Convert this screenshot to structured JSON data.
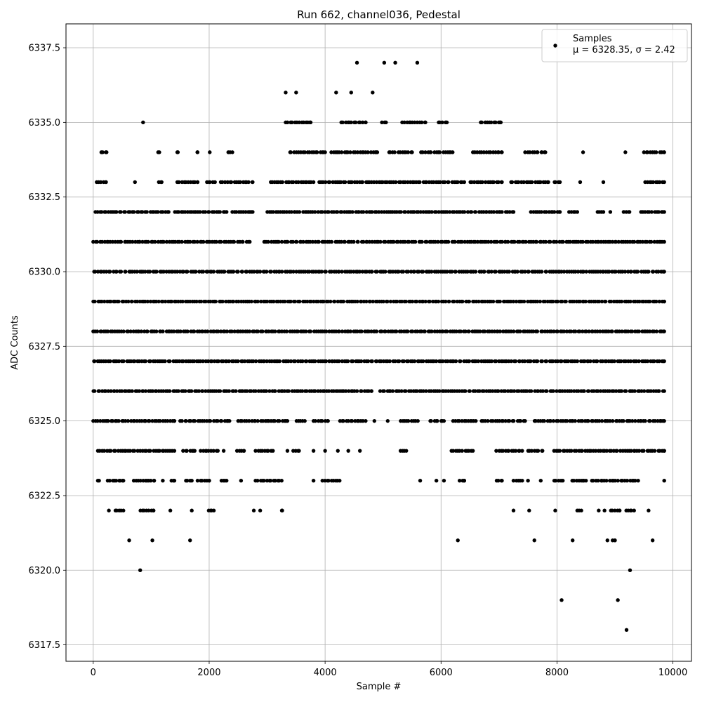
{
  "chart_data": {
    "type": "scatter",
    "title": "Run 662, channel036, Pedestal",
    "xlabel": "Sample #",
    "ylabel": "ADC Counts",
    "xlim": [
      -470,
      10320
    ],
    "ylim": [
      6316.95,
      6338.3
    ],
    "xticks": [
      0,
      2000,
      4000,
      6000,
      8000,
      10000
    ],
    "xtick_labels": [
      "0",
      "2000",
      "4000",
      "6000",
      "8000",
      "10000"
    ],
    "yticks": [
      6317.5,
      6320.0,
      6322.5,
      6325.0,
      6327.5,
      6330.0,
      6332.5,
      6335.0,
      6337.5
    ],
    "ytick_labels": [
      "6317.5",
      "6320.0",
      "6322.5",
      "6325.0",
      "6327.5",
      "6330.0",
      "6332.5",
      "6335.0",
      "6337.5"
    ],
    "grid": true,
    "legend_position": "top-right",
    "marker_color": "#000000",
    "series": [
      {
        "name": "Samples",
        "stats_label": "μ = 6328.35, σ = 2.42",
        "n_samples": 9850,
        "x_range": [
          0,
          9850
        ],
        "level_bands": [
          {
            "y": 6337,
            "segments": [
              [
                4550,
                4550
              ],
              [
                5020,
                5020
              ],
              [
                5210,
                5210
              ],
              [
                5590,
                5590
              ]
            ]
          },
          {
            "y": 6336,
            "segments": [
              [
                3320,
                3320
              ],
              [
                3500,
                3500
              ],
              [
                4190,
                4190
              ],
              [
                4450,
                4450
              ],
              [
                4820,
                4820
              ]
            ]
          },
          {
            "y": 6335,
            "segments": [
              [
                860,
                860
              ],
              [
                3320,
                3750
              ],
              [
                4270,
                4700
              ],
              [
                4980,
                5050
              ],
              [
                5330,
                5730
              ],
              [
                5950,
                6100
              ],
              [
                6680,
                7030
              ]
            ]
          },
          {
            "y": 6334,
            "segments": [
              [
                140,
                230
              ],
              [
                1120,
                1140
              ],
              [
                1450,
                1460
              ],
              [
                1790,
                1800
              ],
              [
                2010,
                2010
              ],
              [
                2330,
                2400
              ],
              [
                3380,
                4000
              ],
              [
                4100,
                4900
              ],
              [
                5100,
                5500
              ],
              [
                5650,
                6200
              ],
              [
                6550,
                7050
              ],
              [
                7450,
                7800
              ],
              [
                8450,
                8450
              ],
              [
                9180,
                9180
              ],
              [
                9500,
                9850
              ]
            ]
          },
          {
            "y": 6333,
            "segments": [
              [
                60,
                220
              ],
              [
                720,
                720
              ],
              [
                1130,
                1180
              ],
              [
                1450,
                1800
              ],
              [
                1950,
                2100
              ],
              [
                2200,
                2750
              ],
              [
                3050,
                3450
              ],
              [
                3500,
                3800
              ],
              [
                3900,
                6400
              ],
              [
                6500,
                7050
              ],
              [
                7200,
                7850
              ],
              [
                7950,
                8050
              ],
              [
                8400,
                8400
              ],
              [
                8800,
                8800
              ],
              [
                9520,
                9850
              ]
            ]
          },
          {
            "y": 6332,
            "segments": [
              [
                30,
                700
              ],
              [
                750,
                1300
              ],
              [
                1400,
                2300
              ],
              [
                2400,
                2750
              ],
              [
                3000,
                7250
              ],
              [
                7550,
                8050
              ],
              [
                8200,
                8350
              ],
              [
                8700,
                8800
              ],
              [
                8920,
                8920
              ],
              [
                9150,
                9250
              ],
              [
                9450,
                9850
              ]
            ]
          },
          {
            "y": 6331,
            "segments": [
              [
                0,
                800
              ],
              [
                850,
                1900
              ],
              [
                1950,
                2700
              ],
              [
                2950,
                9850
              ]
            ]
          },
          {
            "y": 6330,
            "segments": [
              [
                0,
                8900
              ],
              [
                8950,
                9850
              ]
            ]
          },
          {
            "y": 6329,
            "segments": [
              [
                0,
                9850
              ]
            ]
          },
          {
            "y": 6328,
            "segments": [
              [
                0,
                9850
              ]
            ]
          },
          {
            "y": 6327,
            "segments": [
              [
                0,
                9850
              ]
            ]
          },
          {
            "y": 6326,
            "segments": [
              [
                0,
                4550
              ],
              [
                4600,
                4800
              ],
              [
                4950,
                9850
              ]
            ]
          },
          {
            "y": 6325,
            "segments": [
              [
                0,
                900
              ],
              [
                900,
                1400
              ],
              [
                1500,
                2350
              ],
              [
                2500,
                3350
              ],
              [
                3500,
                3650
              ],
              [
                3800,
                4050
              ],
              [
                4250,
                4700
              ],
              [
                4850,
                4850
              ],
              [
                5080,
                5080
              ],
              [
                5300,
                5600
              ],
              [
                5800,
                6050
              ],
              [
                6200,
                6600
              ],
              [
                6700,
                7450
              ],
              [
                7600,
                9850
              ]
            ]
          },
          {
            "y": 6324,
            "segments": [
              [
                80,
                1400
              ],
              [
                1550,
                1750
              ],
              [
                1850,
                2150
              ],
              [
                2250,
                2250
              ],
              [
                2480,
                2600
              ],
              [
                2800,
                3100
              ],
              [
                3350,
                3350
              ],
              [
                3450,
                3550
              ],
              [
                3800,
                3800
              ],
              [
                4000,
                4000
              ],
              [
                4220,
                4220
              ],
              [
                4400,
                4400
              ],
              [
                4600,
                4600
              ],
              [
                5300,
                5400
              ],
              [
                6180,
                6550
              ],
              [
                6950,
                7400
              ],
              [
                7500,
                7750
              ],
              [
                7950,
                9850
              ]
            ]
          },
          {
            "y": 6323,
            "segments": [
              [
                80,
                100
              ],
              [
                250,
                520
              ],
              [
                700,
                1050
              ],
              [
                1200,
                1200
              ],
              [
                1350,
                1400
              ],
              [
                1600,
                1700
              ],
              [
                1800,
                2000
              ],
              [
                2200,
                2300
              ],
              [
                2550,
                2550
              ],
              [
                2800,
                3250
              ],
              [
                3800,
                3800
              ],
              [
                3950,
                4250
              ],
              [
                5640,
                5640
              ],
              [
                5920,
                5920
              ],
              [
                6050,
                6050
              ],
              [
                6320,
                6400
              ],
              [
                6950,
                7050
              ],
              [
                7250,
                7400
              ],
              [
                7500,
                7500
              ],
              [
                7720,
                7720
              ],
              [
                7950,
                8100
              ],
              [
                8250,
                8500
              ],
              [
                8600,
                9050
              ],
              [
                9100,
                9400
              ],
              [
                9850,
                9850
              ]
            ]
          },
          {
            "y": 6322,
            "segments": [
              [
                270,
                270
              ],
              [
                370,
                520
              ],
              [
                800,
                1040
              ],
              [
                1330,
                1330
              ],
              [
                1700,
                1700
              ],
              [
                1980,
                2080
              ],
              [
                2770,
                2770
              ],
              [
                2880,
                2880
              ],
              [
                3240,
                3260
              ],
              [
                7250,
                7250
              ],
              [
                7520,
                7520
              ],
              [
                7970,
                7970
              ],
              [
                8350,
                8420
              ],
              [
                8720,
                8720
              ],
              [
                8820,
                8820
              ],
              [
                8920,
                9080
              ],
              [
                9180,
                9330
              ],
              [
                9580,
                9580
              ]
            ]
          },
          {
            "y": 6321,
            "segments": [
              [
                620,
                620
              ],
              [
                1020,
                1020
              ],
              [
                1670,
                1670
              ],
              [
                6290,
                6290
              ],
              [
                7610,
                7610
              ],
              [
                8270,
                8270
              ],
              [
                8870,
                8870
              ],
              [
                8960,
                9000
              ],
              [
                9650,
                9650
              ]
            ]
          },
          {
            "y": 6320,
            "segments": [
              [
                810,
                810
              ],
              [
                9260,
                9260
              ]
            ]
          },
          {
            "y": 6319,
            "segments": [
              [
                8080,
                8080
              ],
              [
                9050,
                9050
              ]
            ]
          },
          {
            "y": 6318,
            "segments": [
              [
                9200,
                9200
              ]
            ]
          }
        ]
      }
    ]
  }
}
